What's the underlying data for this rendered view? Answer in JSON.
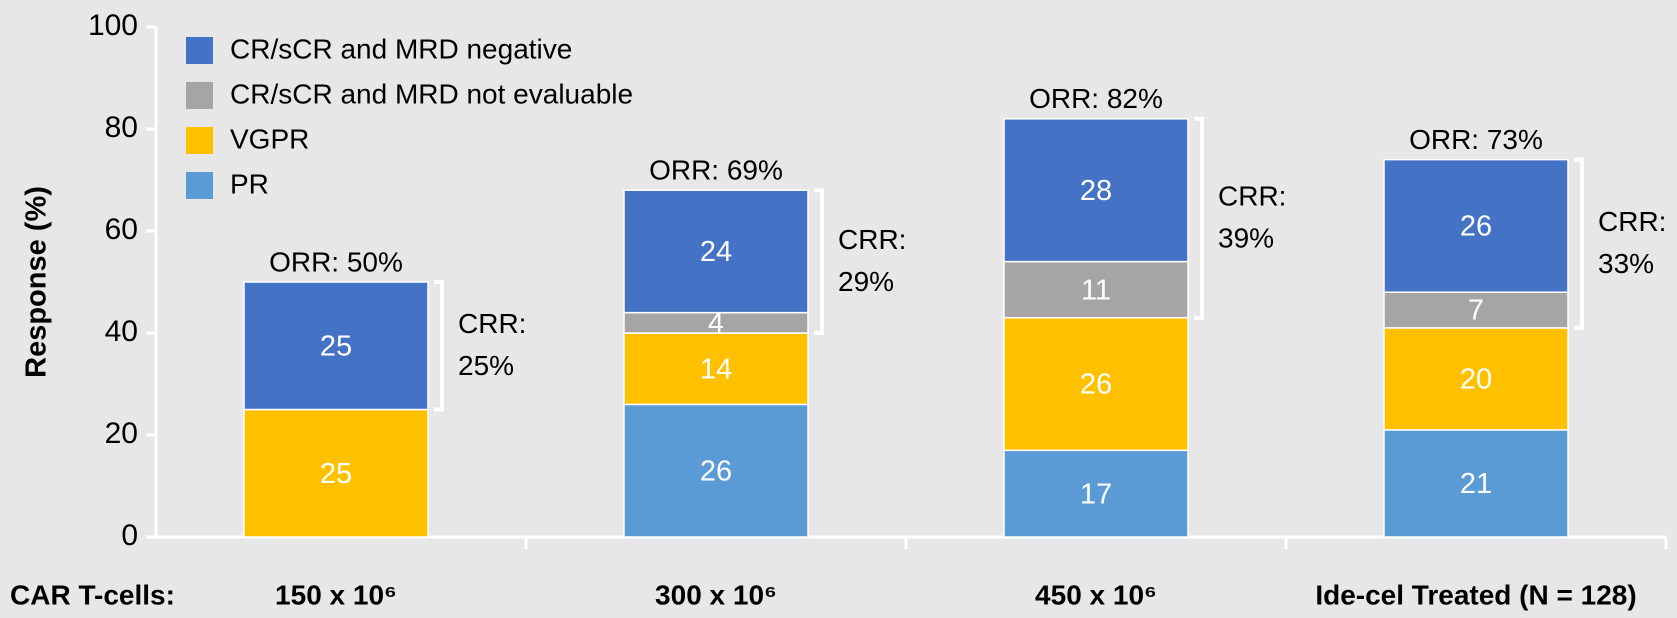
{
  "chart_data": {
    "type": "stacked_bar",
    "ylabel": "Response (%)",
    "xlabel": "CAR T-cells:",
    "categories": [
      "150 x 10⁶",
      "300 x 10⁶",
      "450 x 10⁶",
      "Ide-cel Treated (N = 128)"
    ],
    "series": [
      {
        "name": "PR",
        "color": "#5b9bd5",
        "values": [
          null,
          26,
          17,
          21
        ]
      },
      {
        "name": "VGPR",
        "color": "#ffc000",
        "values": [
          25,
          14,
          26,
          20
        ]
      },
      {
        "name": "CR/sCR and MRD not evaluable",
        "color": "#a5a5a5",
        "values": [
          null,
          4,
          11,
          7
        ]
      },
      {
        "name": "CR/sCR and MRD negative",
        "color": "#4472c4",
        "values": [
          25,
          24,
          28,
          26
        ]
      }
    ],
    "orr_labels": [
      "ORR: 50%",
      "ORR: 69%",
      "ORR: 82%",
      "ORR: 73%"
    ],
    "crr_labels": [
      [
        "CRR:",
        "25%"
      ],
      [
        "CRR:",
        "29%"
      ],
      [
        "CRR:",
        "39%"
      ],
      [
        "CRR:",
        "33%"
      ]
    ],
    "ylim": [
      0,
      100
    ],
    "yticks": [
      0,
      20,
      40,
      60,
      80,
      100
    ],
    "legend": "upper left"
  }
}
